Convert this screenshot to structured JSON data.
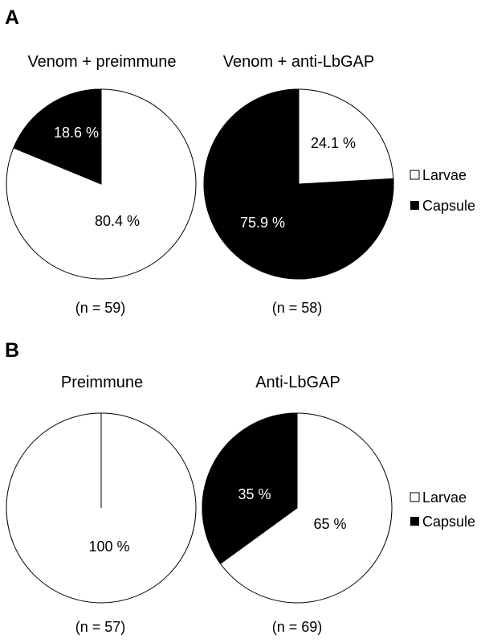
{
  "panels": [
    {
      "label": "A",
      "legend": [
        "Larvae",
        "Capsule"
      ],
      "charts": [
        {
          "title": "Venom + preimmune",
          "n_label": "(n = 59)",
          "slices": [
            {
              "name": "Larvae",
              "value": 80.4,
              "label": "80.4 %",
              "color": "#ffffff"
            },
            {
              "name": "Capsule",
              "value": 18.6,
              "label": "18.6 %",
              "color": "#000000"
            }
          ]
        },
        {
          "title": "Venom + anti-LbGAP",
          "n_label": "(n = 58)",
          "slices": [
            {
              "name": "Larvae",
              "value": 24.1,
              "label": "24.1 %",
              "color": "#ffffff"
            },
            {
              "name": "Capsule",
              "value": 75.9,
              "label": "75.9 %",
              "color": "#000000"
            }
          ]
        }
      ]
    },
    {
      "label": "B",
      "legend": [
        "Larvae",
        "Capsule"
      ],
      "charts": [
        {
          "title": "Preimmune",
          "n_label": "(n = 57)",
          "slices": [
            {
              "name": "Larvae",
              "value": 100,
              "label": "100 %",
              "color": "#ffffff"
            },
            {
              "name": "Capsule",
              "value": 0,
              "label": "",
              "color": "#000000"
            }
          ]
        },
        {
          "title": "Anti-LbGAP",
          "n_label": "(n = 69)",
          "slices": [
            {
              "name": "Larvae",
              "value": 65,
              "label": "65 %",
              "color": "#ffffff"
            },
            {
              "name": "Capsule",
              "value": 35,
              "label": "35 %",
              "color": "#000000"
            }
          ]
        }
      ]
    }
  ],
  "chart_data": [
    {
      "type": "pie",
      "title": "Venom + preimmune",
      "categories": [
        "Larvae",
        "Capsule"
      ],
      "values": [
        80.4,
        18.6
      ],
      "annotation": "(n = 59)"
    },
    {
      "type": "pie",
      "title": "Venom + anti-LbGAP",
      "categories": [
        "Larvae",
        "Capsule"
      ],
      "values": [
        24.1,
        75.9
      ],
      "annotation": "(n = 58)"
    },
    {
      "type": "pie",
      "title": "Preimmune",
      "categories": [
        "Larvae",
        "Capsule"
      ],
      "values": [
        100,
        0
      ],
      "annotation": "(n = 57)"
    },
    {
      "type": "pie",
      "title": "Anti-LbGAP",
      "categories": [
        "Larvae",
        "Capsule"
      ],
      "values": [
        65,
        35
      ],
      "annotation": "(n = 69)"
    }
  ]
}
